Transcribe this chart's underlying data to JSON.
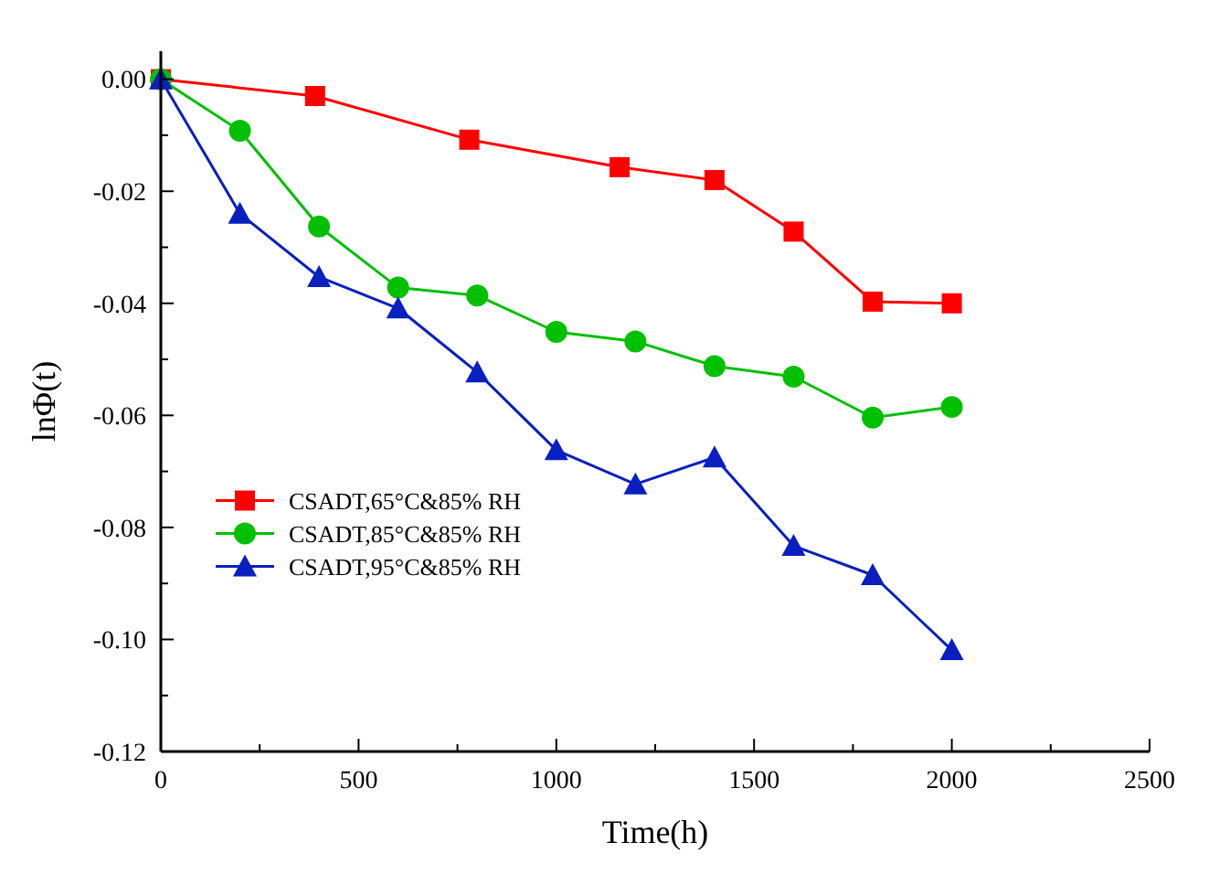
{
  "chart_data": {
    "type": "line",
    "xlabel": "Time(h)",
    "ylabel": "lnΦ(t)",
    "xlim": [
      0,
      2500
    ],
    "ylim": [
      -0.12,
      0.005
    ],
    "xticks": [
      0,
      {
        "value": 250,
        "label": null
      },
      500,
      {
        "value": 750,
        "label": null
      },
      1000,
      {
        "value": 1250,
        "label": null
      },
      1500,
      {
        "value": 1750,
        "label": null
      },
      2000,
      {
        "value": 2250,
        "label": null
      },
      2500
    ],
    "yticks": [
      {
        "value": 0,
        "label": "0.00"
      },
      {
        "value": -0.01,
        "label": null
      },
      {
        "value": -0.02,
        "label": "-0.02"
      },
      {
        "value": -0.03,
        "label": null
      },
      {
        "value": -0.04,
        "label": "-0.04"
      },
      {
        "value": -0.05,
        "label": null
      },
      {
        "value": -0.06,
        "label": "-0.06"
      },
      {
        "value": -0.07,
        "label": null
      },
      {
        "value": -0.08,
        "label": "-0.08"
      },
      {
        "value": -0.09,
        "label": null
      },
      {
        "value": -0.1,
        "label": "-0.10"
      },
      {
        "value": -0.11,
        "label": null
      },
      {
        "value": -0.12,
        "label": "-0.12"
      }
    ],
    "grid": false,
    "legend": "left",
    "line_style": "solid",
    "series": [
      {
        "name": "CSADT,65°C&85% RH",
        "color": "#ff0000",
        "marker": "square",
        "x": [
          0,
          390,
          780,
          1160,
          1400,
          1600,
          1800,
          2000
        ],
        "values": [
          0,
          -0.003,
          -0.0108,
          -0.0157,
          -0.018,
          -0.0272,
          -0.0397,
          -0.04
        ]
      },
      {
        "name": "CSADT,85°C&85% RH",
        "color": "#00c000",
        "marker": "circle",
        "x": [
          0,
          200,
          400,
          600,
          800,
          1000,
          1200,
          1400,
          1600,
          1800,
          2000
        ],
        "values": [
          0,
          -0.0092,
          -0.0263,
          -0.0372,
          -0.0386,
          -0.0451,
          -0.0468,
          -0.0512,
          -0.0531,
          -0.0604,
          -0.0585
        ]
      },
      {
        "name": "CSADT,95°C&85% RH",
        "color": "#0a1fc0",
        "marker": "triangle",
        "x": [
          0,
          200,
          400,
          600,
          800,
          1000,
          1200,
          1400,
          1600,
          1800,
          2000
        ],
        "values": [
          0,
          -0.024,
          -0.0353,
          -0.0409,
          -0.0523,
          -0.0662,
          -0.0723,
          -0.0675,
          -0.0833,
          -0.0885,
          -0.1019
        ]
      }
    ]
  }
}
